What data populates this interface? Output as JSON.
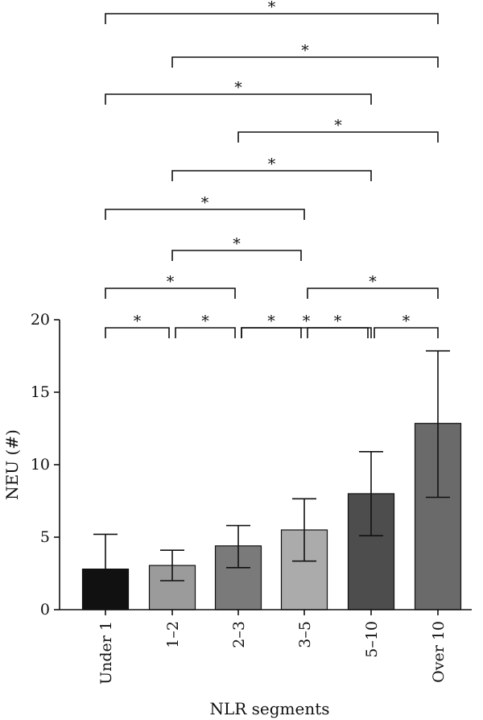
{
  "chart_data": {
    "type": "bar",
    "categories": [
      "Under 1",
      "1–2",
      "2–3",
      "3–5",
      "5–10",
      "Over 10"
    ],
    "values": [
      2.8,
      3.05,
      4.4,
      5.5,
      8.0,
      12.85
    ],
    "error_upper": [
      5.2,
      4.1,
      5.8,
      7.65,
      10.9,
      17.85
    ],
    "error_lower": [
      null,
      2.0,
      2.9,
      3.35,
      5.1,
      7.75
    ],
    "bar_colors": [
      "#111111",
      "#9b9b9b",
      "#7a7a7a",
      "#ababab",
      "#4d4d4d",
      "#6a6a6a"
    ],
    "xlabel": "NLR segments",
    "ylabel": "NEU (#)",
    "ylim": [
      0,
      20
    ],
    "yticks": [
      "0",
      "5",
      "10",
      "15",
      "20"
    ],
    "grid": false,
    "significance": [
      {
        "from": 0,
        "to": 5,
        "label": "*"
      },
      {
        "from": 1,
        "to": 5,
        "label": "*"
      },
      {
        "from": 0,
        "to": 4,
        "label": "*"
      },
      {
        "from": 2,
        "to": 5,
        "label": "*"
      },
      {
        "from": 1,
        "to": 4,
        "label": "*"
      },
      {
        "from": 0,
        "to": 3,
        "label": "*"
      },
      {
        "from": 1,
        "to": 3,
        "label": "*"
      },
      {
        "from": 3,
        "to": 5,
        "label": "*"
      },
      {
        "from": 0,
        "to": 2,
        "label": "*"
      },
      {
        "from": 2,
        "to": 4,
        "label": "*"
      },
      {
        "from": 0,
        "to": 1,
        "label": "*"
      },
      {
        "from": 1,
        "to": 2,
        "label": "*"
      },
      {
        "from": 2,
        "to": 3,
        "label": "*"
      },
      {
        "from": 3,
        "to": 4,
        "label": "*"
      },
      {
        "from": 4,
        "to": 5,
        "label": "*"
      }
    ]
  }
}
